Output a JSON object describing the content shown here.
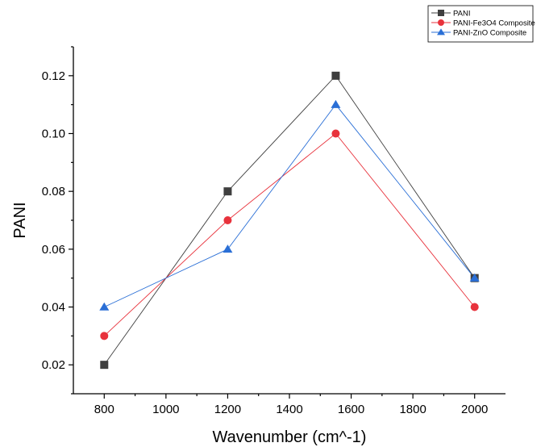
{
  "chart_data": {
    "type": "line",
    "title": "",
    "xlabel": "Wavenumber (cm^-1)",
    "ylabel": "PANI",
    "xlim": [
      700,
      2100
    ],
    "ylim": [
      0.01,
      0.13
    ],
    "xticks": [
      800,
      1000,
      1200,
      1400,
      1600,
      1800,
      2000
    ],
    "xtick_labels": [
      "800",
      "1000",
      "1200",
      "1400",
      "1600",
      "1800",
      "2000"
    ],
    "yticks": [
      0.02,
      0.04,
      0.06,
      0.08,
      0.1,
      0.12
    ],
    "ytick_labels": [
      "0.02",
      "0.04",
      "0.06",
      "0.08",
      "0.10",
      "0.12"
    ],
    "grid": false,
    "legend_position": "top-right",
    "x": [
      800,
      1200,
      1550,
      2000
    ],
    "series": [
      {
        "name": "PANI",
        "values": [
          0.02,
          0.08,
          0.12,
          0.05
        ],
        "color": "#3f3f3f",
        "marker": "square"
      },
      {
        "name": "PANI-Fe3O4 Composite",
        "values": [
          0.03,
          0.07,
          0.1,
          0.04
        ],
        "color": "#e8323c",
        "marker": "circle"
      },
      {
        "name": "PANI-ZnO Composite",
        "values": [
          0.04,
          0.06,
          0.11,
          0.05
        ],
        "color": "#2a6fd6",
        "marker": "triangle"
      }
    ]
  }
}
